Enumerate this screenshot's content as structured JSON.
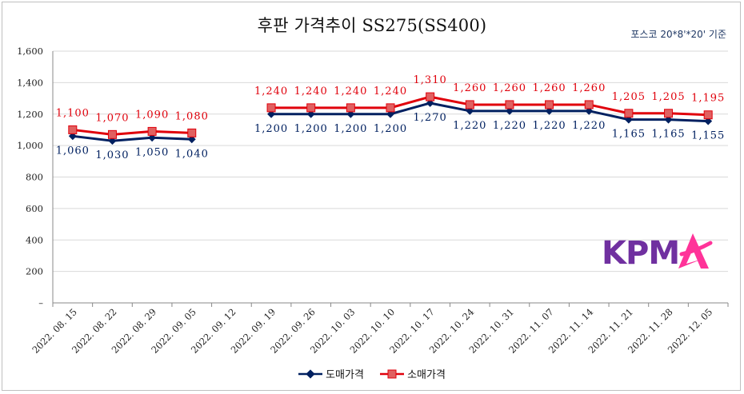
{
  "title": "후판 가격추이 SS275(SS400)",
  "subtitle": "포스코 20*8'*20' 기준",
  "logo_text": "KPMA",
  "colors": {
    "wholesale": "#002060",
    "retail": "#e0000b",
    "logo_purple": "#7030a0",
    "logo_pink": "#ff3399",
    "grid": "#d9d9d9"
  },
  "legend": {
    "wholesale": "도매가격",
    "retail": "소매가격"
  },
  "chart_data": {
    "type": "line",
    "title": "후판 가격추이 SS275(SS400)",
    "categories": [
      "2022. 08. 15",
      "2022. 08. 22",
      "2022. 08. 29",
      "2022. 09. 05",
      "2022. 09. 12",
      "2022. 09. 19",
      "2022. 09. 26",
      "2022. 10. 03",
      "2022. 10. 10",
      "2022. 10. 17",
      "2022. 10. 24",
      "2022. 10. 31",
      "2022. 11. 07",
      "2022. 11. 14",
      "2022. 11. 21",
      "2022. 11. 28",
      "2022. 12. 05"
    ],
    "series": [
      {
        "name": "도매가격",
        "values": [
          1060,
          1030,
          1050,
          1040,
          null,
          1200,
          1200,
          1200,
          1200,
          1270,
          1220,
          1220,
          1220,
          1220,
          1165,
          1165,
          1155
        ],
        "labels": [
          "1,060",
          "1,030",
          "1,050",
          "1,040",
          null,
          "1,200",
          "1,200",
          "1,200",
          "1,200",
          "1,270",
          "1,220",
          "1,220",
          "1,220",
          "1,220",
          "1,165",
          "1,165",
          "1,155"
        ]
      },
      {
        "name": "소매가격",
        "values": [
          1100,
          1070,
          1090,
          1080,
          null,
          1240,
          1240,
          1240,
          1240,
          1310,
          1260,
          1260,
          1260,
          1260,
          1205,
          1205,
          1195
        ],
        "labels": [
          "1,100",
          "1,070",
          "1,090",
          "1,080",
          null,
          "1,240",
          "1,240",
          "1,240",
          "1,240",
          "1,310",
          "1,260",
          "1,260",
          "1,260",
          "1,260",
          "1,205",
          "1,205",
          "1,195"
        ]
      }
    ],
    "ylim": [
      0,
      1600
    ],
    "yticks": [
      0,
      200,
      400,
      600,
      800,
      1000,
      1200,
      1400,
      1600
    ],
    "ytick_labels": [
      "–",
      "200",
      "400",
      "600",
      "800",
      "1,000",
      "1,200",
      "1,400",
      "1,600"
    ],
    "grid": "horizontal",
    "legend_position": "bottom"
  }
}
